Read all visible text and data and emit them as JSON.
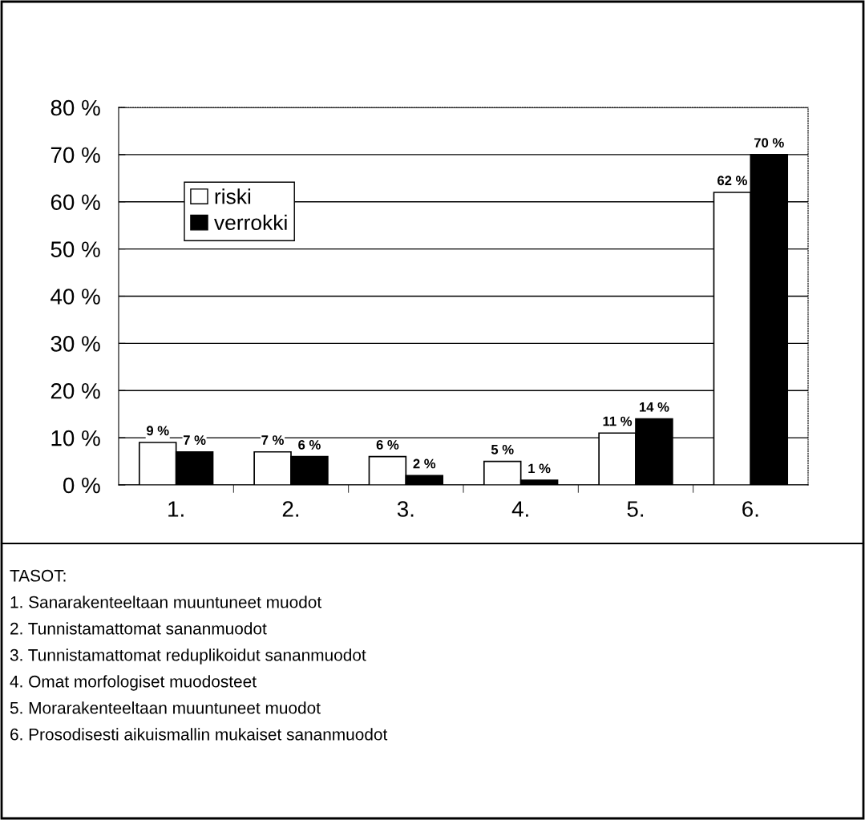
{
  "chart_data": {
    "type": "bar",
    "categories": [
      "1.",
      "2.",
      "3.",
      "4.",
      "5.",
      "6."
    ],
    "series": [
      {
        "name": "riski",
        "color": "#ffffff",
        "values": [
          9,
          7,
          6,
          5,
          11,
          62
        ],
        "value_labels": [
          "9 %",
          "7 %",
          "6 %",
          "5 %",
          "11 %",
          "62 %"
        ]
      },
      {
        "name": "verrokki",
        "color": "#000000",
        "values": [
          7,
          6,
          2,
          1,
          14,
          70
        ],
        "value_labels": [
          "7 %",
          "6 %",
          "2 %",
          "1 %",
          "14 %",
          "70 %"
        ]
      }
    ],
    "ylim": [
      0,
      80
    ],
    "yticks": [
      {
        "value": 0,
        "label": "0 %"
      },
      {
        "value": 10,
        "label": "10 %"
      },
      {
        "value": 20,
        "label": "20 %"
      },
      {
        "value": 30,
        "label": "30 %"
      },
      {
        "value": 40,
        "label": "40 %"
      },
      {
        "value": 50,
        "label": "50 %"
      },
      {
        "value": 60,
        "label": "60 %"
      },
      {
        "value": 70,
        "label": "70 %"
      },
      {
        "value": 80,
        "label": "80 %"
      }
    ],
    "grid": "y",
    "legend": "top left",
    "annotations": [
      "TASOT:",
      "1. Sanarakenteeltaan muuntuneet muodot",
      "2. Tunnistamattomat sananmuodot",
      "3. Tunnistamattomat reduplikoidut sananmuodot",
      "4. Omat morfologiset muodosteet",
      "5. Morarakenteeltaan muuntuneet muodot",
      "6. Prosodisesti aikuismallin mukaiset sananmuodot"
    ]
  }
}
